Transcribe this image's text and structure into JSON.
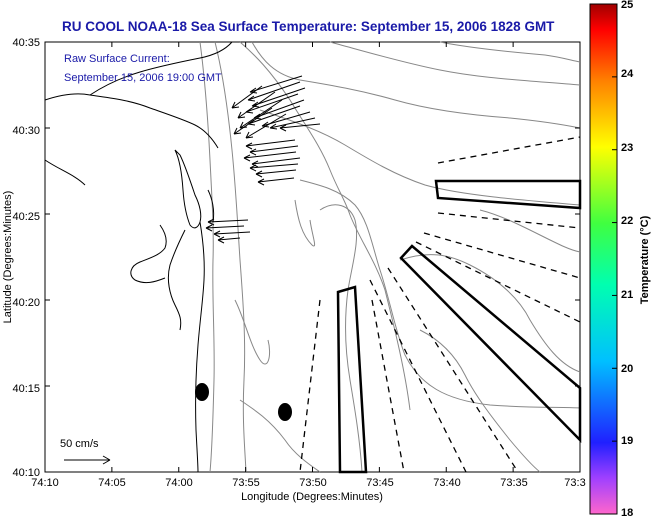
{
  "title": "RU COOL  NOAA-18  Sea Surface Temperature:  September 15, 2006 1828 GMT",
  "current_note": {
    "line1": "Raw Surface Current:",
    "line2": "September 15, 2006 19:00 GMT"
  },
  "scale": {
    "label": "50 cm/s"
  },
  "axes": {
    "xlabel": "Longitude (Degrees:Minutes)",
    "ylabel": "Latitude (Degrees:Minutes)",
    "xticks": [
      "74:10",
      "74:05",
      "74:00",
      "73:55",
      "73:50",
      "73:45",
      "73:40",
      "73:35",
      "73:3"
    ],
    "yticks": [
      "40:35",
      "40:30",
      "40:25",
      "40:20",
      "40:15",
      "40:10"
    ]
  },
  "colorbar": {
    "label": "Temperature (°C)",
    "ticks": [
      "25",
      "24",
      "23",
      "22",
      "21",
      "20",
      "19",
      "18"
    ]
  }
}
